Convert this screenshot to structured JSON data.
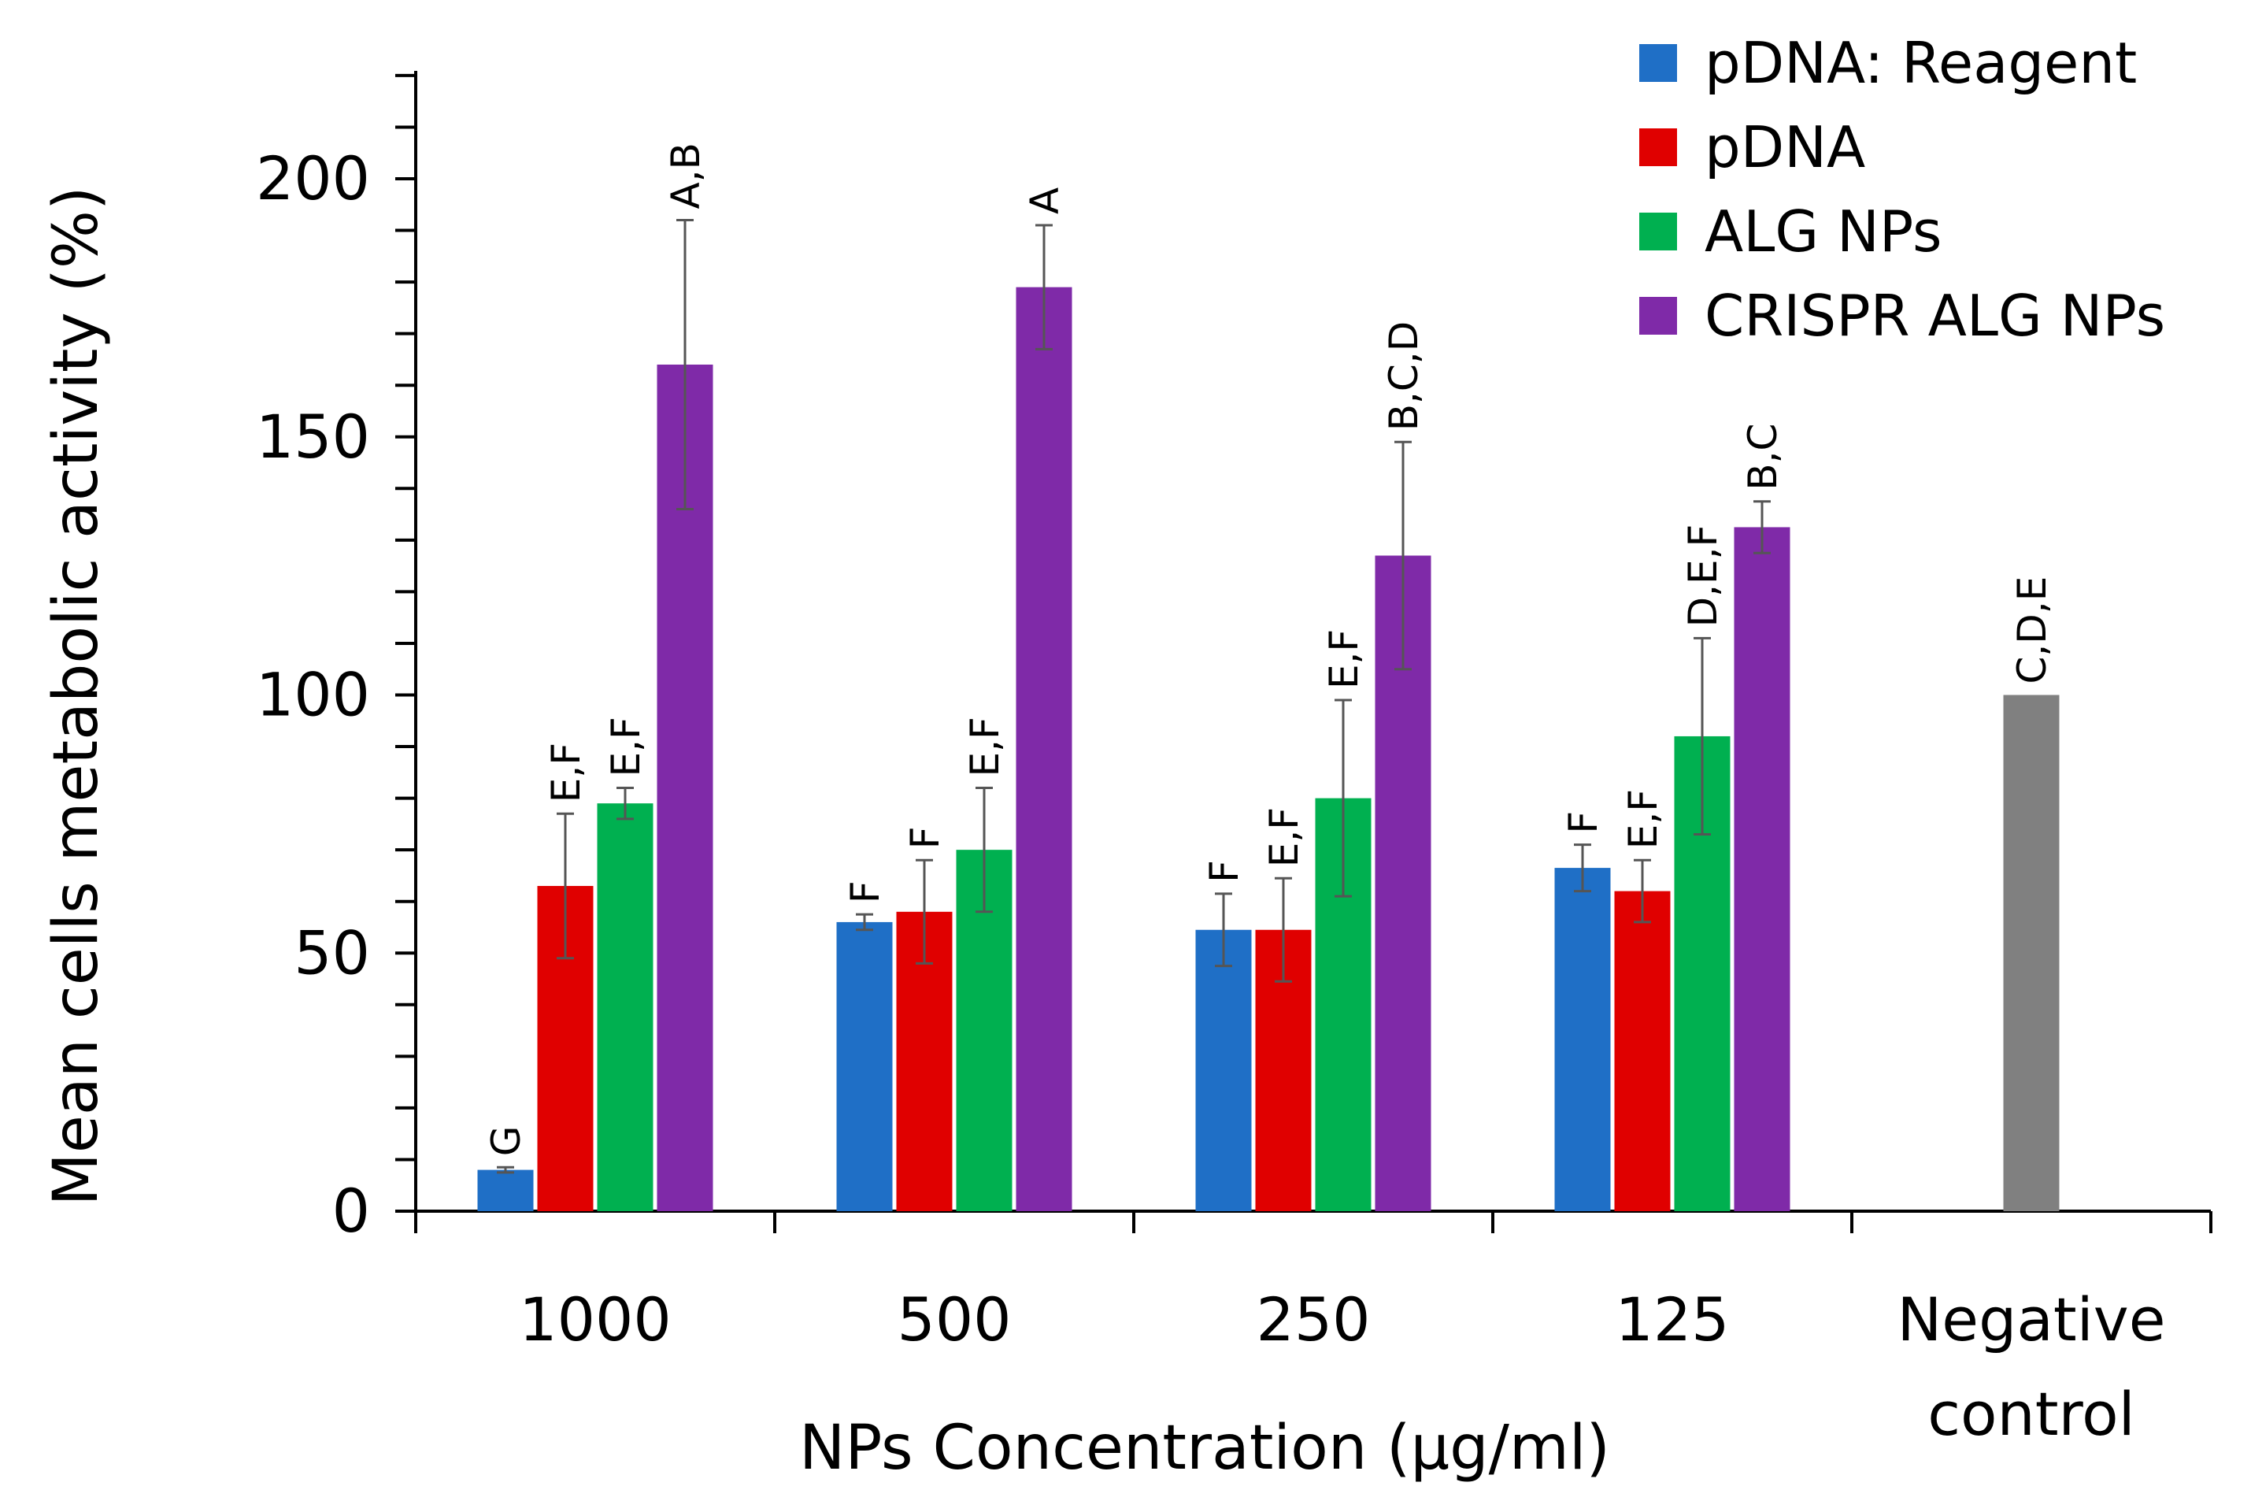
{
  "chart_data": {
    "type": "bar",
    "title": "",
    "xlabel": "NPs Concentration (µg/ml)",
    "ylabel": "Mean cells metabolic activity (%)",
    "ylim": [
      0,
      220
    ],
    "yticks": [
      0,
      50,
      100,
      150,
      200
    ],
    "grid": false,
    "legend_position": "top-right",
    "categories": [
      [
        "1000"
      ],
      [
        "500"
      ],
      [
        "250"
      ],
      [
        "125"
      ],
      [
        "Negative",
        "control"
      ]
    ],
    "series": [
      {
        "name": "pDNA: Reagent",
        "color": "#1f6fc6",
        "values": [
          8,
          56,
          54.5,
          66.5,
          null
        ],
        "errors": [
          0.5,
          1.5,
          7,
          4.5,
          null
        ],
        "labels": [
          "G",
          "F",
          "F",
          "F",
          null
        ]
      },
      {
        "name": "pDNA",
        "color": "#e00000",
        "values": [
          63,
          58,
          54.5,
          62,
          null
        ],
        "errors": [
          14,
          10,
          10,
          6,
          null
        ],
        "labels": [
          "E,F",
          "F",
          "E,F",
          "E,F",
          null
        ]
      },
      {
        "name": "ALG NPs",
        "color": "#00b050",
        "values": [
          79,
          70,
          80,
          92,
          null
        ],
        "errors": [
          3,
          12,
          19,
          19,
          null
        ],
        "labels": [
          "E,F",
          "E,F",
          "E,F",
          "D,E,F",
          null
        ]
      },
      {
        "name": "CRISPR ALG NPs",
        "color": "#7f2aa8",
        "values": [
          164,
          179,
          127,
          132.5,
          null
        ],
        "errors": [
          28,
          12,
          22,
          5,
          null
        ],
        "labels": [
          "A,B",
          "A",
          "B,C,D",
          "B,C",
          null
        ]
      },
      {
        "name": "Negative control",
        "color": "#808080",
        "legend": false,
        "values": [
          null,
          null,
          null,
          null,
          100
        ],
        "errors": [
          null,
          null,
          null,
          null,
          null
        ],
        "labels": [
          null,
          null,
          null,
          null,
          "C,D,E"
        ]
      }
    ]
  }
}
